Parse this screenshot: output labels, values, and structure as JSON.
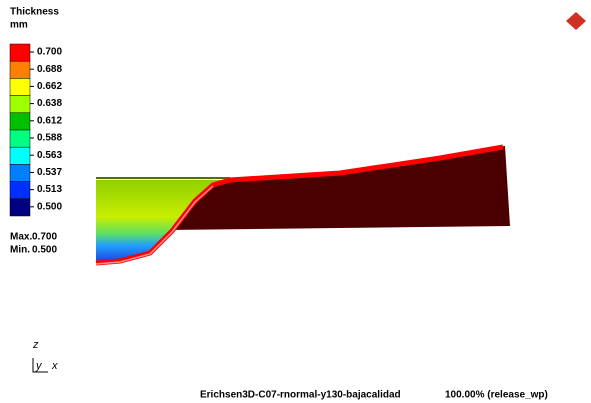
{
  "legend": {
    "title": "Thickness",
    "unit": "mm",
    "levels": [
      {
        "label": "0.700",
        "color": "#ff0000"
      },
      {
        "label": "0.688",
        "color": "#ff8000"
      },
      {
        "label": "0.662",
        "color": "#ffff00"
      },
      {
        "label": "0.638",
        "color": "#a0ff00"
      },
      {
        "label": "0.612",
        "color": "#00c000"
      },
      {
        "label": "0.588",
        "color": "#00ff80"
      },
      {
        "label": "0.563",
        "color": "#00ffff"
      },
      {
        "label": "0.537",
        "color": "#0080ff"
      },
      {
        "label": "0.513",
        "color": "#0030ff"
      },
      {
        "label": "0.500",
        "color": "#000080"
      }
    ],
    "max": {
      "label": "Max.",
      "value": "0.700"
    },
    "min": {
      "label": "Min.",
      "value": "0.500"
    }
  },
  "axes": {
    "z": "z",
    "y": "y",
    "x": "x"
  },
  "footer": {
    "model": "Erichsen3D-C07-rnormal-y130-bajacalidad",
    "status": "100.00% (release_wp)"
  }
}
